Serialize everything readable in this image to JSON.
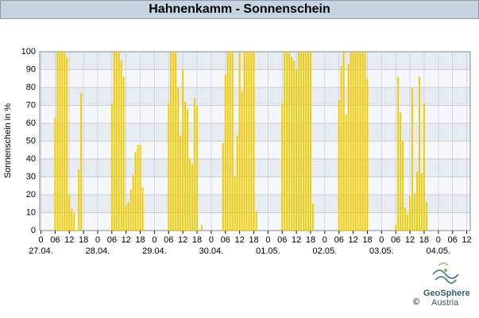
{
  "chart_data": {
    "type": "bar",
    "title": "Hahnenkamm - Sonnenschein",
    "y_label": "Sonnenschein in %",
    "color": "#f2cc00",
    "x": [
      6,
      7,
      8,
      9,
      10,
      11,
      12,
      13,
      14,
      16,
      17,
      30,
      31,
      32,
      33,
      34,
      35,
      36,
      37,
      38,
      39,
      40,
      41,
      42,
      43,
      54,
      55,
      56,
      57,
      58,
      59,
      60,
      61,
      62,
      63,
      64,
      65,
      66,
      68,
      77,
      78,
      79,
      80,
      81,
      82,
      83,
      84,
      85,
      86,
      87,
      88,
      89,
      90,
      91,
      102,
      103,
      104,
      105,
      106,
      107,
      108,
      109,
      110,
      111,
      112,
      113,
      114,
      115,
      126,
      127,
      128,
      129,
      130,
      131,
      132,
      133,
      134,
      135,
      136,
      137,
      138,
      150,
      151,
      152,
      153,
      154,
      155,
      156,
      157,
      158,
      159,
      160,
      161,
      162,
      163
    ],
    "values": [
      63,
      100,
      100,
      100,
      100,
      97,
      20,
      12,
      10,
      34,
      77,
      71,
      100,
      100,
      100,
      95,
      86,
      14,
      16,
      23,
      31,
      44,
      48,
      48,
      24,
      71,
      100,
      100,
      100,
      80,
      53,
      90,
      72,
      68,
      40,
      37,
      74,
      70,
      3,
      49,
      87,
      100,
      100,
      100,
      30,
      53,
      100,
      78,
      100,
      100,
      100,
      100,
      100,
      11,
      71,
      100,
      100,
      100,
      97,
      95,
      90,
      100,
      100,
      100,
      100,
      100,
      100,
      15,
      73,
      92,
      100,
      65,
      93,
      100,
      100,
      100,
      100,
      100,
      100,
      100,
      85,
      3,
      86,
      66,
      50,
      13,
      9,
      19,
      80,
      21,
      33,
      86,
      32,
      71,
      16
    ],
    "xlim": [
      -0.5,
      181.5
    ],
    "ylim": [
      0,
      100
    ],
    "yticks": [
      0,
      10,
      20,
      30,
      40,
      50,
      60,
      70,
      80,
      90,
      100
    ],
    "xticks": [
      0,
      {
        "value": 6,
        "label": "06"
      },
      12,
      18,
      {
        "value": 24,
        "label": "0"
      },
      {
        "value": 30,
        "label": "06"
      },
      {
        "value": 36,
        "label": "12"
      },
      {
        "value": 42,
        "label": "18"
      },
      {
        "value": 48,
        "label": "0"
      },
      {
        "value": 54,
        "label": "06"
      },
      {
        "value": 60,
        "label": "12"
      },
      {
        "value": 66,
        "label": "18"
      },
      {
        "value": 72,
        "label": "0"
      },
      {
        "value": 78,
        "label": "06"
      },
      {
        "value": 84,
        "label": "12"
      },
      {
        "value": 90,
        "label": "18"
      },
      {
        "value": 96,
        "label": "0"
      },
      {
        "value": 102,
        "label": "06"
      },
      {
        "value": 108,
        "label": "12"
      },
      {
        "value": 114,
        "label": "18"
      },
      {
        "value": 120,
        "label": "0"
      },
      {
        "value": 126,
        "label": "06"
      },
      {
        "value": 132,
        "label": "12"
      },
      {
        "value": 138,
        "label": "18"
      },
      {
        "value": 144,
        "label": "0"
      },
      {
        "value": 150,
        "label": "06"
      },
      {
        "value": 156,
        "label": "12"
      },
      {
        "value": 162,
        "label": "18"
      },
      {
        "value": 168,
        "label": "0"
      },
      {
        "value": 174,
        "label": "06"
      },
      {
        "value": 180,
        "label": "12"
      }
    ],
    "date_labels": [
      {
        "value": 0,
        "label": "27.04."
      },
      {
        "value": 24,
        "label": "28.04."
      },
      {
        "value": 48,
        "label": "29.04."
      },
      {
        "value": 72,
        "label": "30.04."
      },
      {
        "value": 96,
        "label": "01.05."
      },
      {
        "value": 120,
        "label": "02.05."
      },
      {
        "value": 144,
        "label": "03.05."
      },
      {
        "value": 168,
        "label": "04.05."
      }
    ],
    "grid": true
  },
  "footer": {
    "copyright": "©",
    "logo_line1": "GeoSphere",
    "logo_line2": "Austria"
  }
}
